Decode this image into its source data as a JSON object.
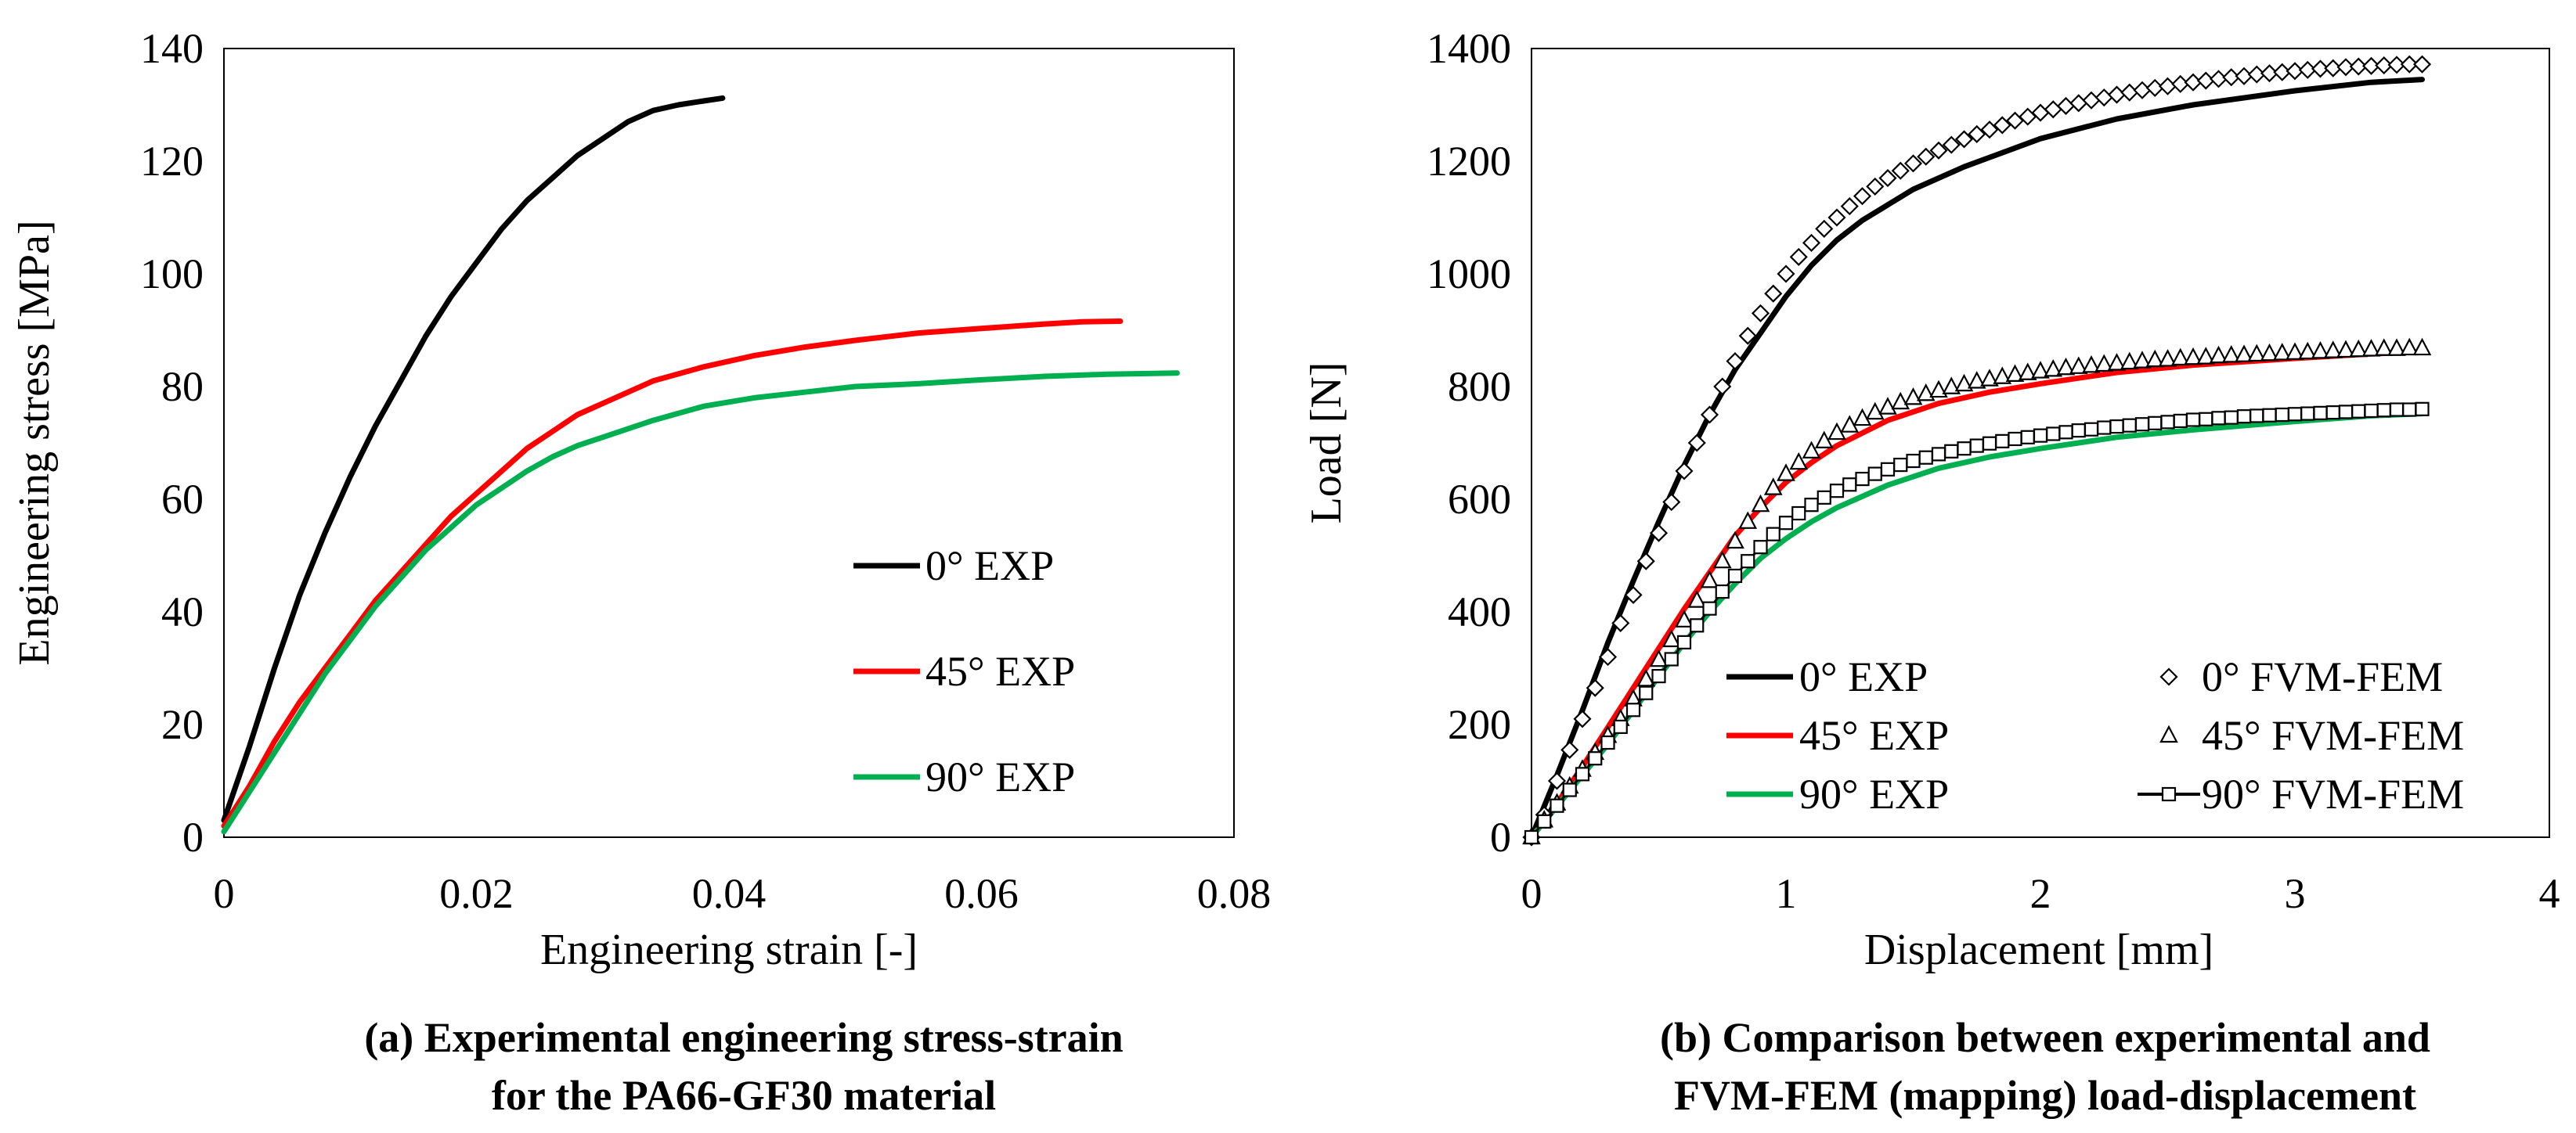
{
  "chart_data": [
    {
      "id": "a",
      "type": "line",
      "caption_lines": [
        "(a) Experimental engineering stress-strain",
        "for the PA66-GF30 material"
      ],
      "xlabel": "Engineering strain [-]",
      "ylabel": "Engineering stress [MPa]",
      "xlim": [
        0,
        0.08
      ],
      "ylim": [
        0,
        140
      ],
      "xticks": [
        0,
        0.02,
        0.04,
        0.06,
        0.08
      ],
      "xtick_labels": [
        "0",
        "0.02",
        "0.04",
        "0.06",
        "0.08"
      ],
      "yticks": [
        0,
        20,
        40,
        60,
        80,
        100,
        120,
        140
      ],
      "ytick_labels": [
        "0",
        "20",
        "40",
        "60",
        "80",
        "100",
        "120",
        "140"
      ],
      "grid": false,
      "legend_position": "bottom-right",
      "series": [
        {
          "name": "0° EXP",
          "color": "#000000",
          "x": [
            0,
            0.002,
            0.004,
            0.006,
            0.008,
            0.01,
            0.012,
            0.014,
            0.016,
            0.018,
            0.02,
            0.022,
            0.024,
            0.026,
            0.028,
            0.03,
            0.032,
            0.034,
            0.036,
            0.038,
            0.0395
          ],
          "y": [
            3,
            16,
            30,
            43,
            54,
            64,
            73,
            81,
            89,
            96,
            102,
            108,
            113,
            117,
            121,
            124,
            127,
            129,
            130,
            130.7,
            131.2
          ]
        },
        {
          "name": "45° EXP",
          "color": "#ff0000",
          "x": [
            0,
            0.002,
            0.004,
            0.006,
            0.008,
            0.01,
            0.012,
            0.014,
            0.016,
            0.018,
            0.02,
            0.022,
            0.024,
            0.026,
            0.028,
            0.03,
            0.034,
            0.038,
            0.042,
            0.046,
            0.05,
            0.055,
            0.06,
            0.065,
            0.068,
            0.071
          ],
          "y": [
            2,
            9,
            17,
            24,
            30,
            36,
            42,
            47,
            52,
            57,
            61,
            65,
            69,
            72,
            75,
            77,
            81,
            83.5,
            85.5,
            87,
            88.2,
            89.5,
            90.3,
            91.1,
            91.5,
            91.6
          ]
        },
        {
          "name": "90° EXP",
          "color": "#00b050",
          "x": [
            0,
            0.002,
            0.004,
            0.006,
            0.008,
            0.01,
            0.012,
            0.014,
            0.016,
            0.018,
            0.02,
            0.022,
            0.024,
            0.026,
            0.028,
            0.03,
            0.034,
            0.038,
            0.042,
            0.046,
            0.05,
            0.055,
            0.06,
            0.065,
            0.07,
            0.0755
          ],
          "y": [
            1,
            8,
            15,
            22,
            29,
            35,
            41,
            46,
            51,
            55,
            59,
            62,
            65,
            67.5,
            69.5,
            71,
            74,
            76.5,
            78,
            79,
            80,
            80.5,
            81.2,
            81.8,
            82.2,
            82.4
          ]
        }
      ]
    },
    {
      "id": "b",
      "type": "line",
      "caption_lines": [
        "(b) Comparison between experimental and",
        "FVM-FEM (mapping) load-displacement"
      ],
      "xlabel": "Displacement [mm]",
      "ylabel": "Load [N]",
      "xlim": [
        0,
        4
      ],
      "ylim": [
        0,
        1400
      ],
      "xticks": [
        0,
        1,
        2,
        3,
        4
      ],
      "xtick_labels": [
        "0",
        "1",
        "2",
        "3",
        "4"
      ],
      "yticks": [
        0,
        200,
        400,
        600,
        800,
        1000,
        1200,
        1400
      ],
      "ytick_labels": [
        "0",
        "200",
        "400",
        "600",
        "800",
        "1000",
        "1200",
        "1400"
      ],
      "grid": false,
      "legend_position": "bottom",
      "series": [
        {
          "name": "0° EXP",
          "color": "#000000",
          "kind": "line",
          "x": [
            0,
            0.1,
            0.2,
            0.3,
            0.4,
            0.5,
            0.6,
            0.7,
            0.8,
            0.9,
            1.0,
            1.1,
            1.2,
            1.3,
            1.5,
            1.7,
            2.0,
            2.3,
            2.6,
            3.0,
            3.3,
            3.5
          ],
          "y": [
            0,
            110,
            225,
            345,
            455,
            560,
            660,
            750,
            830,
            895,
            960,
            1015,
            1060,
            1095,
            1150,
            1190,
            1240,
            1275,
            1300,
            1325,
            1340,
            1345
          ]
        },
        {
          "name": "45° EXP",
          "color": "#ff0000",
          "kind": "line",
          "x": [
            0,
            0.1,
            0.2,
            0.3,
            0.4,
            0.5,
            0.6,
            0.7,
            0.8,
            0.9,
            1.0,
            1.1,
            1.2,
            1.4,
            1.6,
            1.8,
            2.0,
            2.3,
            2.6,
            3.0,
            3.3,
            3.5
          ],
          "y": [
            0,
            60,
            125,
            195,
            265,
            335,
            405,
            470,
            535,
            585,
            630,
            665,
            695,
            740,
            770,
            790,
            805,
            825,
            838,
            850,
            858,
            862
          ]
        },
        {
          "name": "90° EXP",
          "color": "#00b050",
          "kind": "line",
          "x": [
            0,
            0.1,
            0.2,
            0.3,
            0.4,
            0.5,
            0.6,
            0.7,
            0.8,
            0.9,
            1.0,
            1.1,
            1.2,
            1.4,
            1.6,
            1.8,
            2.0,
            2.3,
            2.6,
            3.0,
            3.3,
            3.5
          ],
          "y": [
            0,
            55,
            110,
            165,
            225,
            285,
            345,
            400,
            450,
            495,
            530,
            560,
            585,
            625,
            655,
            675,
            690,
            710,
            723,
            738,
            748,
            752
          ]
        },
        {
          "name": "0° FVM-FEM",
          "color": "#000000",
          "kind": "markers",
          "marker": "diamond",
          "x": [
            0,
            0.05,
            0.1,
            0.15,
            0.2,
            0.25,
            0.3,
            0.35,
            0.4,
            0.45,
            0.5,
            0.55,
            0.6,
            0.65,
            0.7,
            0.75,
            0.8,
            0.85,
            0.9,
            0.95,
            1.0,
            1.05,
            1.1,
            1.15,
            1.2,
            1.25,
            1.3,
            1.35,
            1.4,
            1.45,
            1.5,
            1.55,
            1.6,
            1.65,
            1.7,
            1.75,
            1.8,
            1.85,
            1.9,
            1.95,
            2.0,
            2.05,
            2.1,
            2.15,
            2.2,
            2.25,
            2.3,
            2.35,
            2.4,
            2.45,
            2.5,
            2.55,
            2.6,
            2.65,
            2.7,
            2.75,
            2.8,
            2.85,
            2.9,
            2.95,
            3.0,
            3.05,
            3.1,
            3.15,
            3.2,
            3.25,
            3.3,
            3.35,
            3.4,
            3.45,
            3.5
          ],
          "y": [
            0,
            40,
            100,
            155,
            210,
            265,
            320,
            380,
            430,
            490,
            540,
            595,
            650,
            700,
            750,
            800,
            845,
            890,
            930,
            965,
            1000,
            1030,
            1055,
            1080,
            1100,
            1120,
            1138,
            1155,
            1170,
            1183,
            1196,
            1208,
            1219,
            1229,
            1239,
            1248,
            1256,
            1264,
            1272,
            1279,
            1286,
            1292,
            1298,
            1303,
            1308,
            1313,
            1318,
            1322,
            1326,
            1330,
            1333,
            1337,
            1340,
            1343,
            1346,
            1349,
            1351,
            1354,
            1356,
            1358,
            1360,
            1362,
            1364,
            1365,
            1367,
            1368,
            1369,
            1370,
            1371,
            1372,
            1372
          ]
        },
        {
          "name": "45° FVM-FEM",
          "color": "#000000",
          "kind": "markers",
          "marker": "triangle",
          "x": [
            0,
            0.05,
            0.1,
            0.15,
            0.2,
            0.25,
            0.3,
            0.35,
            0.4,
            0.45,
            0.5,
            0.55,
            0.6,
            0.65,
            0.7,
            0.75,
            0.8,
            0.85,
            0.9,
            0.95,
            1.0,
            1.05,
            1.1,
            1.15,
            1.2,
            1.25,
            1.3,
            1.35,
            1.4,
            1.45,
            1.5,
            1.55,
            1.6,
            1.65,
            1.7,
            1.75,
            1.8,
            1.85,
            1.9,
            1.95,
            2.0,
            2.05,
            2.1,
            2.15,
            2.2,
            2.25,
            2.3,
            2.35,
            2.4,
            2.45,
            2.5,
            2.55,
            2.6,
            2.65,
            2.7,
            2.75,
            2.8,
            2.85,
            2.9,
            2.95,
            3.0,
            3.05,
            3.1,
            3.15,
            3.2,
            3.25,
            3.3,
            3.35,
            3.4,
            3.45,
            3.5
          ],
          "y": [
            0,
            30,
            60,
            90,
            120,
            150,
            180,
            210,
            245,
            280,
            315,
            350,
            385,
            420,
            455,
            490,
            525,
            560,
            590,
            620,
            645,
            665,
            685,
            703,
            718,
            731,
            743,
            754,
            763,
            772,
            780,
            787,
            793,
            799,
            804,
            809,
            813,
            817,
            821,
            824,
            827,
            830,
            833,
            835,
            837,
            839,
            841,
            843,
            845,
            847,
            848,
            850,
            851,
            852,
            854,
            855,
            856,
            857,
            858,
            859,
            860,
            861,
            862,
            863,
            864,
            865,
            866,
            867,
            867,
            868,
            868
          ]
        },
        {
          "name": "90° FVM-FEM",
          "color": "#000000",
          "kind": "line+markers",
          "marker": "square",
          "x": [
            0,
            0.05,
            0.1,
            0.15,
            0.2,
            0.25,
            0.3,
            0.35,
            0.4,
            0.45,
            0.5,
            0.55,
            0.6,
            0.65,
            0.7,
            0.75,
            0.8,
            0.85,
            0.9,
            0.95,
            1.0,
            1.05,
            1.1,
            1.15,
            1.2,
            1.25,
            1.3,
            1.35,
            1.4,
            1.45,
            1.5,
            1.55,
            1.6,
            1.65,
            1.7,
            1.75,
            1.8,
            1.85,
            1.9,
            1.95,
            2.0,
            2.05,
            2.1,
            2.15,
            2.2,
            2.25,
            2.3,
            2.35,
            2.4,
            2.45,
            2.5,
            2.55,
            2.6,
            2.65,
            2.7,
            2.75,
            2.8,
            2.85,
            2.9,
            2.95,
            3.0,
            3.05,
            3.1,
            3.15,
            3.2,
            3.25,
            3.3,
            3.35,
            3.4,
            3.45,
            3.5
          ],
          "y": [
            0,
            28,
            56,
            84,
            112,
            140,
            168,
            196,
            226,
            256,
            286,
            316,
            346,
            376,
            406,
            436,
            464,
            490,
            515,
            538,
            558,
            575,
            590,
            603,
            615,
            626,
            636,
            645,
            653,
            661,
            668,
            674,
            680,
            685,
            690,
            695,
            699,
            703,
            707,
            710,
            713,
            716,
            719,
            722,
            724,
            727,
            729,
            731,
            733,
            735,
            737,
            739,
            741,
            742,
            744,
            745,
            747,
            748,
            749,
            750,
            751,
            752,
            753,
            754,
            755,
            756,
            757,
            758,
            759,
            759,
            760
          ]
        }
      ]
    }
  ]
}
